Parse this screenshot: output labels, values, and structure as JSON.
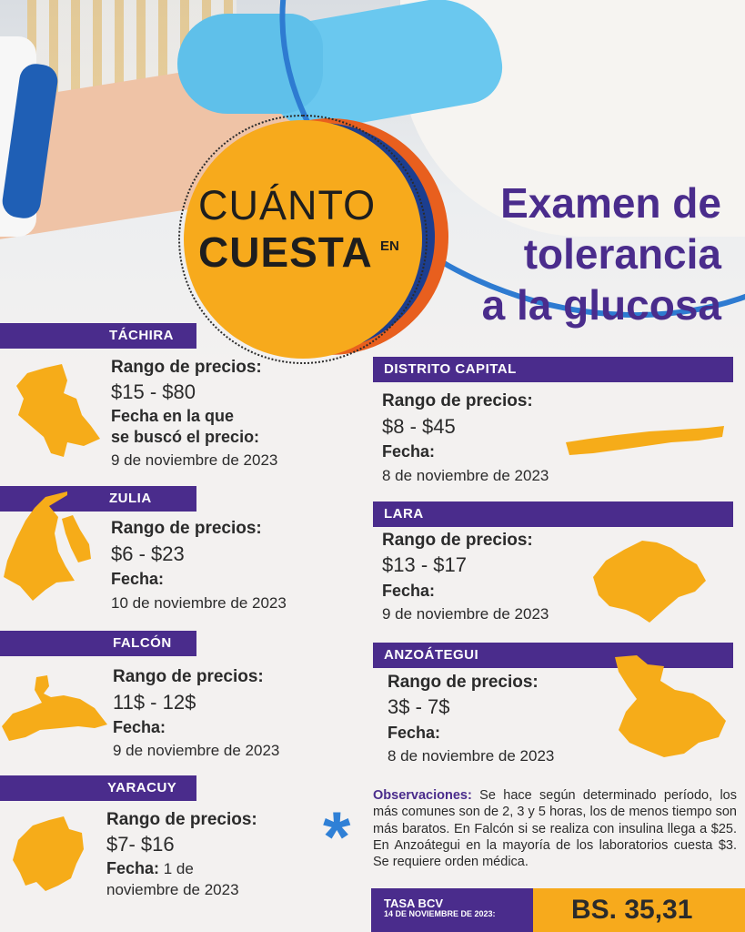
{
  "badge": {
    "line1": "CUÁNTO",
    "line2": "CUESTA",
    "small": "EN"
  },
  "title": {
    "line1": "Examen de",
    "line2": "tolerancia",
    "line3": "a la glucosa"
  },
  "regions": {
    "tachira": {
      "name": "TÁCHIRA",
      "range_label": "Rango de precios:",
      "price": "$15 - $80",
      "date_label_1": "Fecha en la que",
      "date_label_2": "se buscó el precio:",
      "date": "9 de noviembre de 2023"
    },
    "zulia": {
      "name": "ZULIA",
      "range_label": "Rango de precios:",
      "price": "$6 - $23",
      "date_label": "Fecha:",
      "date": "10 de noviembre de 2023"
    },
    "falcon": {
      "name": "FALCÓN",
      "range_label": "Rango de precios:",
      "price": "11$ - 12$",
      "date_label": "Fecha:",
      "date": "9 de noviembre de 2023"
    },
    "yaracuy": {
      "name": "YARACUY",
      "range_label": "Rango de precios:",
      "price": "$7- $16",
      "date_label": "Fecha:",
      "date_1": " 1 de",
      "date_2": "noviembre de 2023"
    },
    "distrito_capital": {
      "name": "DISTRITO CAPITAL",
      "range_label": "Rango de precios:",
      "price": "$8 - $45",
      "date_label": "Fecha:",
      "date": "8 de noviembre de 2023"
    },
    "lara": {
      "name": "LARA",
      "range_label": "Rango de precios:",
      "price": "$13 - $17",
      "date_label": "Fecha:",
      "date": "9 de noviembre de 2023"
    },
    "anzoategui": {
      "name": "ANZOÁTEGUI",
      "range_label": "Rango de precios:",
      "price": "3$ - 7$",
      "date_label": "Fecha:",
      "date": "8 de noviembre de 2023"
    }
  },
  "observations": {
    "label": "Observaciones:",
    "text": " Se hace según determinado período, los más comunes son de 2, 3 y 5 horas, los de menos tiempo son más baratos. En Falcón si se realiza con insulina llega a $25. En Anzoátegui en la mayoría de los laboratorios cuesta $3. Se requiere orden médica."
  },
  "tasa": {
    "label": "TASA BCV",
    "date": "14 DE NOVIEMBRE DE 2023:",
    "value": "BS. 35,31"
  },
  "colors": {
    "purple": "#4a2c8c",
    "orange": "#f7aa1c",
    "blue": "#2f80d6"
  }
}
